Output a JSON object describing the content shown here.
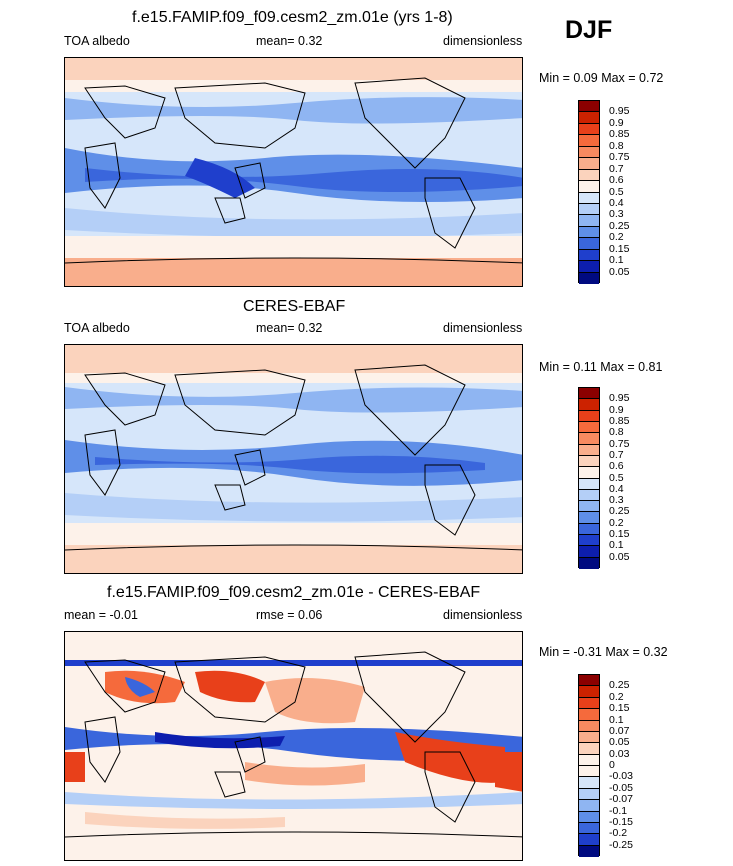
{
  "season": "DJF",
  "panels": [
    {
      "id": "model",
      "title": "f.e15.FAMIP.f09_f09.cesm2_zm.01e (yrs 1-8)",
      "left_label": "TOA albedo",
      "mid_label": "mean=  0.32",
      "right_label": "dimensionless",
      "minmax": "Min =  0.09 Max =  0.72",
      "colorbar": {
        "ticks": [
          "0.95",
          "0.9",
          "0.85",
          "0.8",
          "0.75",
          "0.7",
          "0.6",
          "0.5",
          "0.4",
          "0.3",
          "0.25",
          "0.2",
          "0.15",
          "0.1",
          "0.05"
        ],
        "colors": [
          "#8b0000",
          "#cc2200",
          "#e8401a",
          "#f56a3c",
          "#f78a60",
          "#f9ae8c",
          "#fbd3bd",
          "#fdf2ea",
          "#d6e6fa",
          "#b4cff7",
          "#8fb5f2",
          "#5f8fe8",
          "#3a66dc",
          "#1f3fcc",
          "#0d1eae",
          "#000a80"
        ]
      }
    },
    {
      "id": "obs",
      "title": "CERES-EBAF",
      "left_label": "TOA albedo",
      "mid_label": "mean=  0.32",
      "right_label": "dimensionless",
      "minmax": "Min =  0.11 Max =  0.81",
      "colorbar": {
        "ticks": [
          "0.95",
          "0.9",
          "0.85",
          "0.8",
          "0.75",
          "0.7",
          "0.6",
          "0.5",
          "0.4",
          "0.3",
          "0.25",
          "0.2",
          "0.15",
          "0.1",
          "0.05"
        ],
        "colors": [
          "#8b0000",
          "#cc2200",
          "#e8401a",
          "#f56a3c",
          "#f78a60",
          "#f9ae8c",
          "#fbd3bd",
          "#fdf2ea",
          "#d6e6fa",
          "#b4cff7",
          "#8fb5f2",
          "#5f8fe8",
          "#3a66dc",
          "#1f3fcc",
          "#0d1eae",
          "#000a80"
        ]
      }
    },
    {
      "id": "diff",
      "title": "f.e15.FAMIP.f09_f09.cesm2_zm.01e - CERES-EBAF",
      "left_label": "mean =  -0.01",
      "mid_label": "rmse =  0.06",
      "right_label": "dimensionless",
      "minmax": "Min =  -0.31 Max =  0.32",
      "colorbar": {
        "ticks": [
          "0.25",
          "0.2",
          "0.15",
          "0.1",
          "0.07",
          "0.05",
          "0.03",
          "0",
          "-0.03",
          "-0.05",
          "-0.07",
          "-0.1",
          "-0.15",
          "-0.2",
          "-0.25"
        ],
        "colors": [
          "#8b0000",
          "#cc2200",
          "#e8401a",
          "#f56a3c",
          "#f78a60",
          "#f9ae8c",
          "#fbd3bd",
          "#fdf2ea",
          "#fdf2ea",
          "#d6e6fa",
          "#b4cff7",
          "#8fb5f2",
          "#5f8fe8",
          "#3a66dc",
          "#1f3fcc",
          "#000a80"
        ]
      }
    }
  ]
}
